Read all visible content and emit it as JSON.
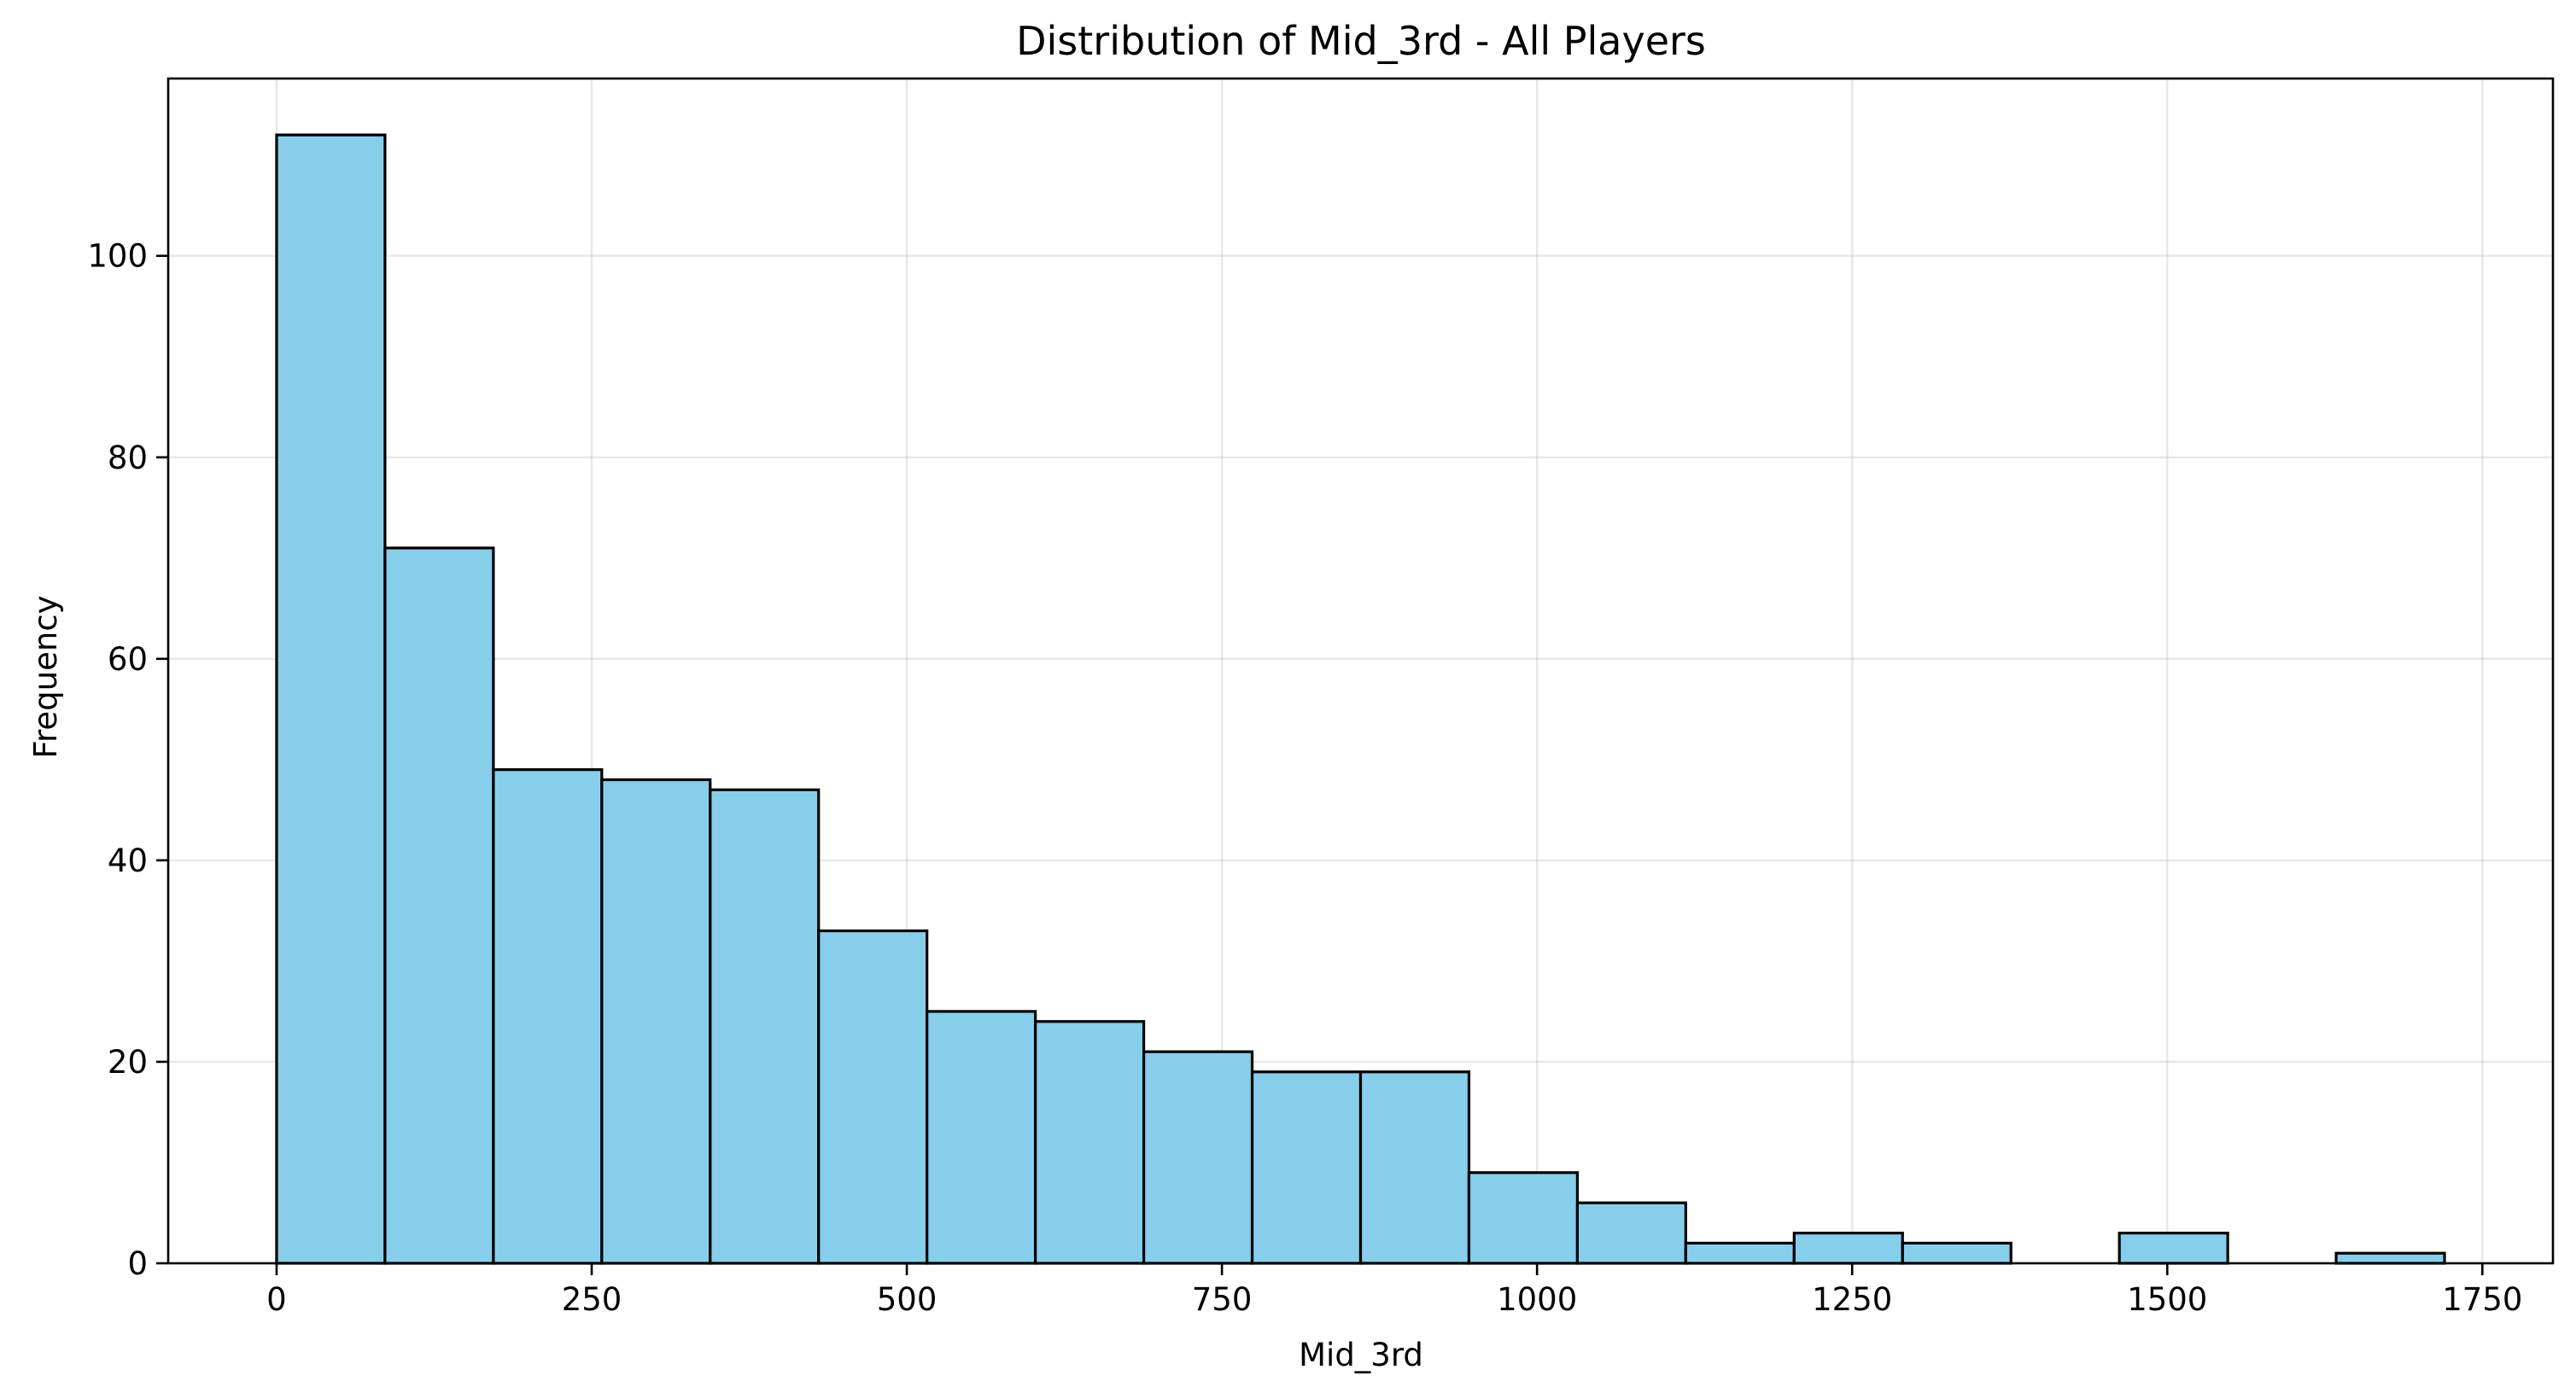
{
  "chart_data": {
    "type": "bar",
    "title": "Distribution of Mid_3rd - All Players",
    "xlabel": "Mid_3rd",
    "ylabel": "Frequency",
    "bin_edges": [
      0,
      86,
      172,
      258,
      344,
      430,
      516,
      602,
      688,
      774,
      860,
      946,
      1032,
      1118,
      1204,
      1290,
      1376,
      1462,
      1548,
      1634,
      1720
    ],
    "values": [
      112,
      71,
      49,
      48,
      47,
      33,
      25,
      24,
      21,
      19,
      19,
      9,
      6,
      2,
      3,
      2,
      0,
      3,
      0,
      1
    ],
    "xlim": [
      -86,
      1806
    ],
    "ylim": [
      0,
      117.6
    ],
    "xticks": [
      0,
      250,
      500,
      750,
      1000,
      1250,
      1500,
      1750
    ],
    "xtick_labels": [
      "0",
      "250",
      "500",
      "750",
      "1000",
      "1250",
      "1500",
      "1750"
    ],
    "yticks": [
      0,
      20,
      40,
      60,
      80,
      100
    ],
    "ytick_labels": [
      "0",
      "20",
      "40",
      "60",
      "80",
      "100"
    ],
    "grid": true,
    "bar_color": "#87CEEB",
    "edge_color": "#000000"
  }
}
